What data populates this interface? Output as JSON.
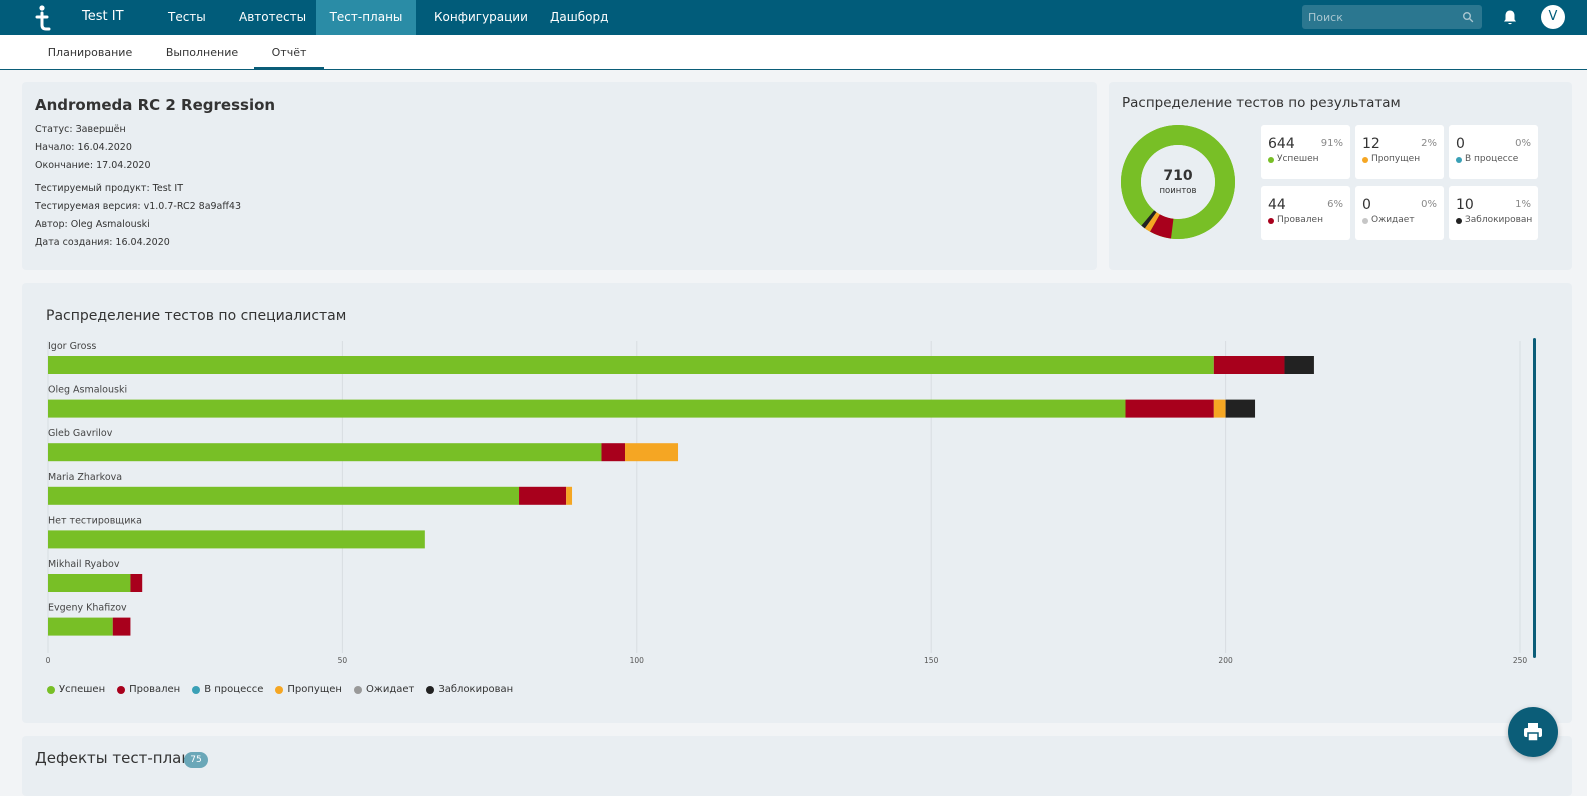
{
  "app": {
    "name": "Test IT"
  },
  "nav": {
    "items": [
      {
        "label": "Тесты",
        "active": false
      },
      {
        "label": "Автотесты",
        "active": false
      },
      {
        "label": "Тест-планы",
        "active": true
      },
      {
        "label": "Конфигурации",
        "active": false
      },
      {
        "label": "Дашборд",
        "active": false
      }
    ],
    "search_placeholder": "Поиск",
    "avatar_letter": "V"
  },
  "subtabs": [
    {
      "label": "Планирование",
      "active": false
    },
    {
      "label": "Выполнение",
      "active": false
    },
    {
      "label": "Отчёт",
      "active": true
    }
  ],
  "plan": {
    "title": "Andromeda RC 2 Regression",
    "status": "Статус: Завершён",
    "start": "Начало: 16.04.2020",
    "end": "Окончание: 17.04.2020",
    "product": "Тестируемый продукт: Test IT",
    "version": "Тестируемая версия: v1.0.7-RC2 8a9aff43",
    "author": "Автор: Oleg Asmalouski",
    "created": "Дата создания: 16.04.2020"
  },
  "results": {
    "title": "Распределение тестов по результатам",
    "total": "710",
    "total_label": "поинтов",
    "stats": [
      {
        "count": "644",
        "pct": "91%",
        "label": "Успешен",
        "color": "#78bf26"
      },
      {
        "count": "12",
        "pct": "2%",
        "label": "Пропущен",
        "color": "#f5a623"
      },
      {
        "count": "0",
        "pct": "0%",
        "label": "В процессе",
        "color": "#3aa0b6"
      },
      {
        "count": "44",
        "pct": "6%",
        "label": "Провален",
        "color": "#a8001c"
      },
      {
        "count": "0",
        "pct": "0%",
        "label": "Ожидает",
        "color": "#c6c6c6"
      },
      {
        "count": "10",
        "pct": "1%",
        "label": "Заблокирован",
        "color": "#222222"
      }
    ]
  },
  "specialists": {
    "title": "Распределение тестов по специалистам"
  },
  "chart_data": {
    "type": "bar",
    "orientation": "horizontal",
    "stacked": true,
    "categories": [
      "Igor Gross",
      "Oleg Asmalouski",
      "Gleb Gavrilov",
      "Maria Zharkova",
      "Нет тестировщика",
      "Mikhail Ryabov",
      "Evgeny Khafizov"
    ],
    "series": [
      {
        "name": "Успешен",
        "color": "#78bf26",
        "values": [
          198,
          183,
          94,
          80,
          64,
          14,
          11
        ]
      },
      {
        "name": "Провален",
        "color": "#a8001c",
        "values": [
          12,
          15,
          4,
          8,
          0,
          2,
          3
        ]
      },
      {
        "name": "В процессе",
        "color": "#3aa0b6",
        "values": [
          0,
          0,
          0,
          0,
          0,
          0,
          0
        ]
      },
      {
        "name": "Пропущен",
        "color": "#f5a623",
        "values": [
          0,
          2,
          9,
          1,
          0,
          0,
          0
        ]
      },
      {
        "name": "Ожидает",
        "color": "#999999",
        "values": [
          0,
          0,
          0,
          0,
          0,
          0,
          0
        ]
      },
      {
        "name": "Заблокирован",
        "color": "#222222",
        "values": [
          5,
          5,
          0,
          0,
          0,
          0,
          0
        ]
      }
    ],
    "xlim": [
      0,
      250
    ],
    "xticks": [
      0,
      50,
      100,
      150,
      200,
      250
    ],
    "grid": true,
    "legend": "bottom-left"
  },
  "defects": {
    "title": "Дефекты тест-плана",
    "count": "75"
  }
}
